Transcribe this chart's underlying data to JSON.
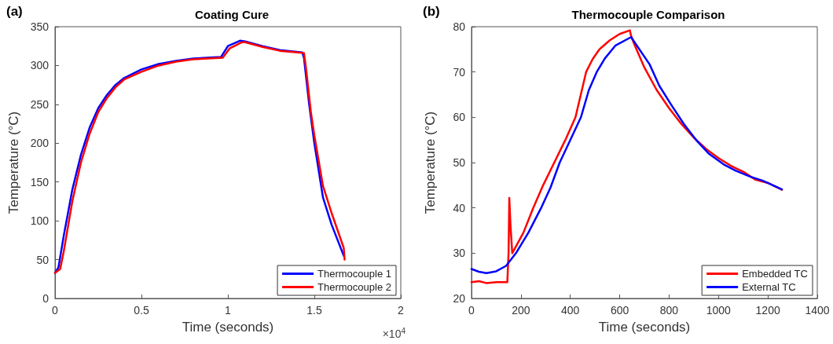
{
  "chart_data": [
    {
      "type": "line",
      "title": "Coating Cure",
      "xlabel": "Time (seconds)",
      "ylabel": "Temperature (°C)",
      "annotations": [
        "(a)",
        "×10$^{4}$"
      ],
      "xlim": [
        0,
        2
      ],
      "xticks": [
        0,
        0.5,
        1,
        1.5,
        2
      ],
      "ylim": [
        0,
        350
      ],
      "yticks": [
        0,
        50,
        100,
        150,
        200,
        250,
        300,
        350
      ],
      "grid": false,
      "legend": "bottom right",
      "marker": "none",
      "line_style": "solid",
      "series": [
        {
          "name": "Thermocouple 1",
          "color": "#0000ff",
          "x": [
            0,
            0.02,
            0.05,
            0.1,
            0.15,
            0.2,
            0.25,
            0.3,
            0.35,
            0.4,
            0.5,
            0.6,
            0.7,
            0.8,
            0.96,
            1.0,
            1.07,
            1.1,
            1.2,
            1.3,
            1.43,
            1.44,
            1.47,
            1.5,
            1.55,
            1.6,
            1.67
          ],
          "values": [
            33,
            40,
            80,
            140,
            185,
            220,
            245,
            262,
            275,
            284,
            295,
            302,
            306,
            309,
            311,
            325,
            332,
            331,
            325,
            320,
            317,
            310,
            250,
            200,
            130,
            95,
            55
          ]
        },
        {
          "name": "Thermocouple 2",
          "color": "#ff0000",
          "x": [
            0,
            0.03,
            0.05,
            0.1,
            0.15,
            0.2,
            0.25,
            0.3,
            0.35,
            0.4,
            0.5,
            0.6,
            0.7,
            0.8,
            0.97,
            1.01,
            1.08,
            1.1,
            1.2,
            1.3,
            1.44,
            1.45,
            1.48,
            1.5,
            1.55,
            1.6,
            1.67,
            1.675
          ],
          "values": [
            33,
            38,
            60,
            125,
            175,
            212,
            240,
            258,
            272,
            282,
            292,
            300,
            305,
            308,
            310,
            322,
            330,
            330,
            324,
            319,
            316,
            300,
            240,
            210,
            145,
            110,
            65,
            50
          ]
        }
      ]
    },
    {
      "type": "line",
      "title": "Thermocouple Comparison",
      "xlabel": "Time (seconds)",
      "ylabel": "Temperature (°C)",
      "annotations": [
        "(b)"
      ],
      "xlim": [
        0,
        1400
      ],
      "xticks": [
        0,
        200,
        400,
        600,
        800,
        1000,
        1200,
        1400
      ],
      "ylim": [
        20,
        80
      ],
      "yticks": [
        20,
        30,
        40,
        50,
        60,
        70,
        80
      ],
      "grid": false,
      "legend": "bottom right",
      "marker": "none",
      "line_style": "solid",
      "series": [
        {
          "name": "Embedded TC",
          "color": "#ff0000",
          "x": [
            0,
            30,
            60,
            100,
            145,
            150,
            153,
            158,
            165,
            210,
            250,
            290,
            335,
            380,
            421,
            464,
            490,
            518,
            560,
            600,
            641,
            646,
            660,
            700,
            750,
            800,
            850,
            900,
            950,
            1000,
            1050,
            1100,
            1150,
            1200,
            1257
          ],
          "values": [
            23.6,
            23.8,
            23.4,
            23.6,
            23.6,
            30,
            42.2,
            36,
            30,
            34.5,
            40,
            45,
            50,
            55,
            60,
            70,
            72.8,
            75,
            77,
            78.4,
            79.2,
            78,
            76,
            71,
            66,
            62,
            58.5,
            55.5,
            53,
            51,
            49.3,
            48,
            46.2,
            45.5,
            44
          ]
        },
        {
          "name": "External TC",
          "color": "#0000ff",
          "x": [
            0,
            30,
            60,
            100,
            140,
            180,
            230,
            282,
            320,
            357,
            400,
            443,
            475,
            507,
            540,
            582,
            646,
            721,
            760,
            807,
            860,
            914,
            960,
            1021,
            1070,
            1128,
            1180,
            1257
          ],
          "values": [
            26.5,
            25.9,
            25.6,
            26,
            27.2,
            30,
            34.5,
            40,
            44.5,
            50,
            55,
            60,
            66,
            70,
            73,
            75.8,
            77.7,
            71.7,
            67,
            62.9,
            58.5,
            54.7,
            52,
            49.6,
            48.2,
            46.9,
            46,
            44.1
          ]
        }
      ]
    }
  ]
}
